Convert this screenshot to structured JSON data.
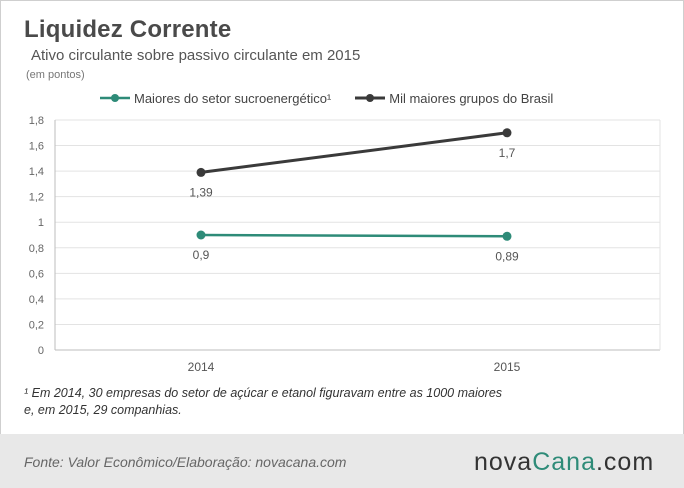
{
  "title": "Liquidez Corrente",
  "subtitle": "Ativo circulante sobre passivo circulante em 2015",
  "unit_note": "(em pontos)",
  "footnote_line1": "¹ Em 2014, 30 empresas   do setor de açúcar e etanol figuravam entre as 1000 maiores",
  "footnote_line2": "e, em 2015, 29 companhias.",
  "source": "Fonte:  Valor  Econômico/Elaboração: novacana.com",
  "logo": {
    "part1": "nova",
    "part2": "Cana",
    "part3": ".com"
  },
  "colors": {
    "sucro": "#2e8b78",
    "brasil": "#3a3a3a",
    "axis": "#bdbdbd",
    "grid": "#e3e3e3"
  },
  "chart_data": {
    "type": "line",
    "title": "Liquidez Corrente",
    "subtitle": "Ativo circulante sobre passivo circulante em 2015",
    "ylabel": "(em pontos)",
    "x": [
      "2014",
      "2015"
    ],
    "ylim": [
      0,
      1.8
    ],
    "yticks": [
      "0",
      "0,2",
      "0,4",
      "0,6",
      "0,8",
      "1",
      "1,2",
      "1,4",
      "1,6",
      "1,8"
    ],
    "grid": true,
    "legend_position": "top",
    "series": [
      {
        "name": "Maiores do setor sucroenergético¹",
        "values": [
          0.9,
          0.89
        ],
        "labels": [
          "0,9",
          "0,89"
        ],
        "color": "#2e8b78"
      },
      {
        "name": "Mil maiores grupos do Brasil",
        "values": [
          1.39,
          1.7
        ],
        "labels": [
          "1,39",
          "1,7"
        ],
        "color": "#3a3a3a"
      }
    ]
  }
}
